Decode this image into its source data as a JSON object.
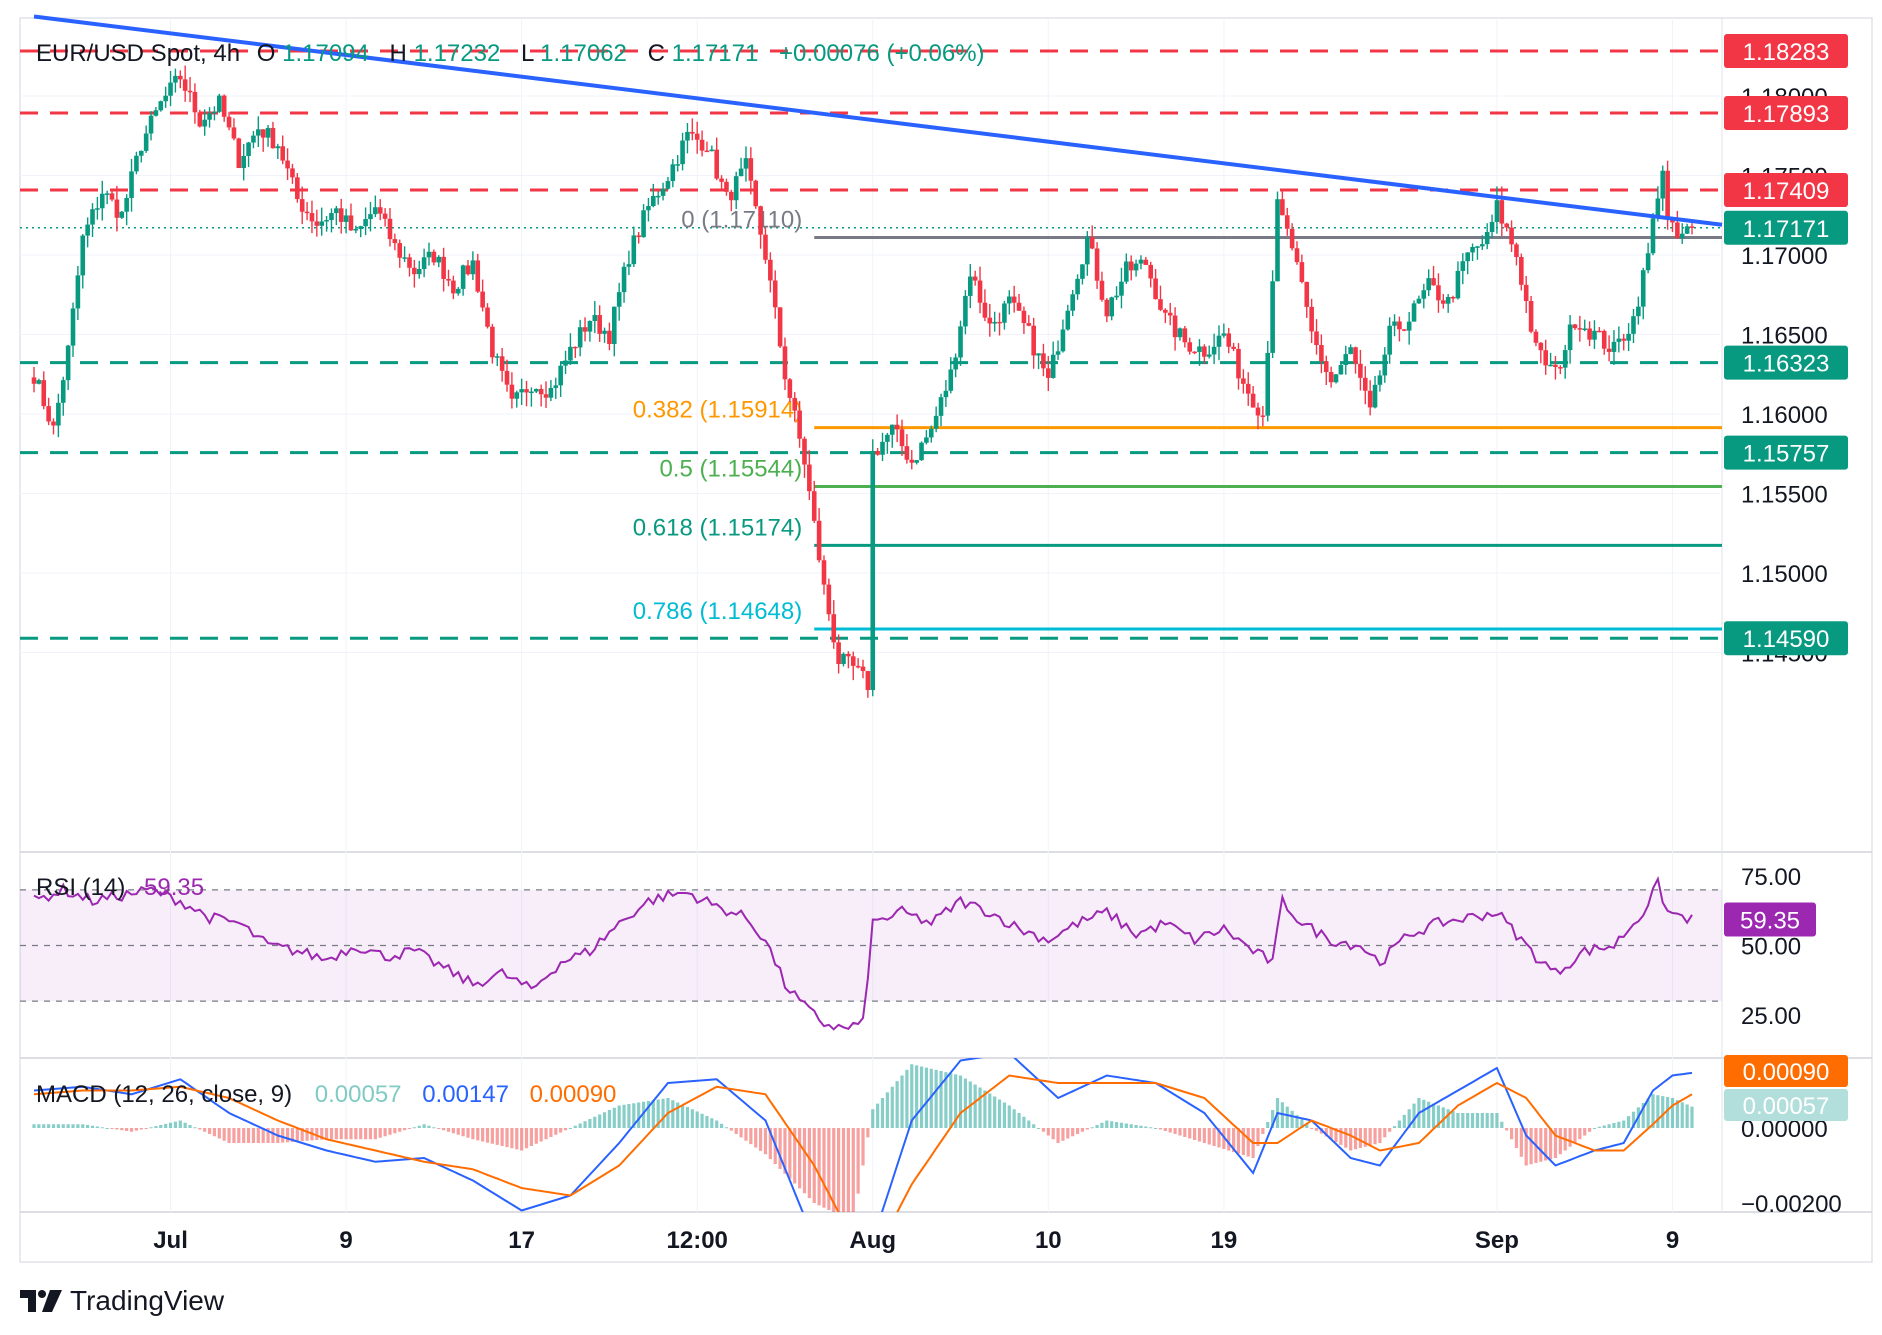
{
  "header": {
    "symbol": "EUR/USD Spot, 4h",
    "open_label": "O",
    "open": "1.17094",
    "high_label": "H",
    "high": "1.17232",
    "low_label": "L",
    "low": "1.17062",
    "close_label": "C",
    "close": "1.17171",
    "change": "+0.00076 (+0.06%)"
  },
  "price_axis_ticks": [
    "1.18000",
    "1.17500",
    "1.17000",
    "1.16500",
    "1.16000",
    "1.15500",
    "1.15000",
    "1.14500"
  ],
  "horizontal_levels": [
    {
      "label": "1.18283",
      "value": 1.18283,
      "color": "#f23645",
      "style": "dashed"
    },
    {
      "label": "1.17893",
      "value": 1.17893,
      "color": "#f23645",
      "style": "dashed"
    },
    {
      "label": "1.17409",
      "value": 1.17409,
      "color": "#f23645",
      "style": "dashed"
    },
    {
      "label": "1.16323",
      "value": 1.16323,
      "color": "#089981",
      "style": "dashed"
    },
    {
      "label": "1.15757",
      "value": 1.15757,
      "color": "#089981",
      "style": "dashed"
    },
    {
      "label": "1.14590",
      "value": 1.1459,
      "color": "#089981",
      "style": "dashed"
    }
  ],
  "current_price": {
    "label": "1.17171",
    "value": 1.17171,
    "color": "#089981"
  },
  "fib_levels": [
    {
      "label": "0 (1.17110)",
      "value": 1.1711,
      "color": "#787b86"
    },
    {
      "label": "0.382 (1.15914)",
      "value": 1.15914,
      "color": "#ff9800"
    },
    {
      "label": "0.5 (1.15544)",
      "value": 1.15544,
      "color": "#4caf50"
    },
    {
      "label": "0.618 (1.15174)",
      "value": 1.15174,
      "color": "#089981"
    },
    {
      "label": "0.786 (1.14648)",
      "value": 1.14648,
      "color": "#00bcd4"
    }
  ],
  "x_axis_labels": [
    {
      "text": "Jul",
      "bar": 28,
      "bold": true
    },
    {
      "text": "9",
      "bar": 64,
      "bold": false
    },
    {
      "text": "17",
      "bar": 100,
      "bold": false
    },
    {
      "text": "12:00",
      "bar": 136,
      "bold": false
    },
    {
      "text": "Aug",
      "bar": 172,
      "bold": true
    },
    {
      "text": "10",
      "bar": 208,
      "bold": false
    },
    {
      "text": "19",
      "bar": 244,
      "bold": false
    },
    {
      "text": "Sep",
      "bar": 300,
      "bold": true
    },
    {
      "text": "9",
      "bar": 336,
      "bold": false
    }
  ],
  "rsi": {
    "title": "RSI (14)",
    "value": "59.35",
    "ticks": [
      "75.00",
      "50.00",
      "25.00"
    ],
    "color": "#9c27b0"
  },
  "macd": {
    "title": "MACD (12, 26, close, 9)",
    "hist_value": "0.00057",
    "macd_value": "0.00147",
    "signal_value": "0.00090",
    "ticks": [
      "0.00000",
      "−0.00200"
    ],
    "macd_color": "#2962ff",
    "signal_color": "#ff6d00"
  },
  "brand": "TradingView",
  "chart_data": {
    "type": "candlestick",
    "title": "EUR/USD Spot, 4h",
    "ylim": [
      1.1425,
      1.1835
    ],
    "grid": true,
    "trendline": {
      "color": "#2962ff",
      "from": {
        "bar": 0,
        "price": 1.185
      },
      "to": {
        "bar": 340,
        "price": 1.1719
      }
    },
    "anchor_points": [
      [
        0,
        1.1625
      ],
      [
        4,
        1.159
      ],
      [
        7,
        1.164
      ],
      [
        10,
        1.171
      ],
      [
        14,
        1.174
      ],
      [
        18,
        1.1725
      ],
      [
        22,
        1.177
      ],
      [
        26,
        1.1795
      ],
      [
        30,
        1.1812
      ],
      [
        34,
        1.1785
      ],
      [
        38,
        1.1795
      ],
      [
        42,
        1.176
      ],
      [
        46,
        1.178
      ],
      [
        50,
        1.177
      ],
      [
        54,
        1.1735
      ],
      [
        58,
        1.172
      ],
      [
        62,
        1.1728
      ],
      [
        66,
        1.1712
      ],
      [
        70,
        1.173
      ],
      [
        74,
        1.1705
      ],
      [
        78,
        1.169
      ],
      [
        82,
        1.17
      ],
      [
        86,
        1.168
      ],
      [
        90,
        1.1695
      ],
      [
        94,
        1.164
      ],
      [
        98,
        1.1605
      ],
      [
        102,
        1.162
      ],
      [
        106,
        1.1615
      ],
      [
        110,
        1.164
      ],
      [
        114,
        1.166
      ],
      [
        118,
        1.165
      ],
      [
        122,
        1.17
      ],
      [
        126,
        1.173
      ],
      [
        130,
        1.175
      ],
      [
        134,
        1.1775
      ],
      [
        138,
        1.177
      ],
      [
        142,
        1.1735
      ],
      [
        146,
        1.1755
      ],
      [
        150,
        1.17
      ],
      [
        154,
        1.1625
      ],
      [
        158,
        1.157
      ],
      [
        162,
        1.149
      ],
      [
        165,
        1.1445
      ],
      [
        168,
        1.144
      ],
      [
        171,
        1.143
      ],
      [
        172,
        1.1575
      ],
      [
        176,
        1.159
      ],
      [
        180,
        1.157
      ],
      [
        184,
        1.159
      ],
      [
        188,
        1.1625
      ],
      [
        192,
        1.169
      ],
      [
        196,
        1.1655
      ],
      [
        200,
        1.167
      ],
      [
        204,
        1.165
      ],
      [
        208,
        1.162
      ],
      [
        212,
        1.167
      ],
      [
        216,
        1.171
      ],
      [
        220,
        1.1665
      ],
      [
        224,
        1.169
      ],
      [
        228,
        1.1695
      ],
      [
        232,
        1.166
      ],
      [
        236,
        1.1645
      ],
      [
        240,
        1.164
      ],
      [
        244,
        1.165
      ],
      [
        248,
        1.162
      ],
      [
        252,
        1.16
      ],
      [
        255,
        1.173
      ],
      [
        258,
        1.1705
      ],
      [
        262,
        1.165
      ],
      [
        266,
        1.162
      ],
      [
        270,
        1.164
      ],
      [
        274,
        1.16
      ],
      [
        278,
        1.165
      ],
      [
        282,
        1.166
      ],
      [
        286,
        1.168
      ],
      [
        290,
        1.167
      ],
      [
        294,
        1.17
      ],
      [
        298,
        1.171
      ],
      [
        300,
        1.173
      ],
      [
        304,
        1.17
      ],
      [
        308,
        1.164
      ],
      [
        312,
        1.1625
      ],
      [
        316,
        1.166
      ],
      [
        320,
        1.165
      ],
      [
        324,
        1.164
      ],
      [
        328,
        1.166
      ],
      [
        331,
        1.17
      ],
      [
        333,
        1.174
      ],
      [
        334,
        1.1755
      ],
      [
        335,
        1.172
      ],
      [
        337,
        1.171
      ],
      [
        340,
        1.1717
      ]
    ],
    "rsi_anchors": [
      [
        0,
        66
      ],
      [
        6,
        70
      ],
      [
        12,
        66
      ],
      [
        18,
        68
      ],
      [
        24,
        70
      ],
      [
        30,
        66
      ],
      [
        36,
        60
      ],
      [
        42,
        58
      ],
      [
        48,
        50
      ],
      [
        54,
        48
      ],
      [
        60,
        45
      ],
      [
        66,
        50
      ],
      [
        72,
        46
      ],
      [
        78,
        48
      ],
      [
        84,
        42
      ],
      [
        90,
        36
      ],
      [
        96,
        40
      ],
      [
        102,
        34
      ],
      [
        108,
        44
      ],
      [
        114,
        48
      ],
      [
        120,
        58
      ],
      [
        126,
        66
      ],
      [
        130,
        68
      ],
      [
        134,
        69
      ],
      [
        140,
        64
      ],
      [
        146,
        60
      ],
      [
        150,
        52
      ],
      [
        154,
        36
      ],
      [
        158,
        28
      ],
      [
        162,
        22
      ],
      [
        166,
        20
      ],
      [
        170,
        22
      ],
      [
        172,
        58
      ],
      [
        178,
        62
      ],
      [
        184,
        58
      ],
      [
        190,
        66
      ],
      [
        196,
        62
      ],
      [
        202,
        56
      ],
      [
        208,
        52
      ],
      [
        214,
        58
      ],
      [
        220,
        62
      ],
      [
        226,
        54
      ],
      [
        232,
        58
      ],
      [
        238,
        52
      ],
      [
        244,
        56
      ],
      [
        250,
        48
      ],
      [
        254,
        44
      ],
      [
        256,
        66
      ],
      [
        260,
        58
      ],
      [
        266,
        52
      ],
      [
        272,
        50
      ],
      [
        276,
        44
      ],
      [
        282,
        54
      ],
      [
        288,
        58
      ],
      [
        294,
        60
      ],
      [
        300,
        62
      ],
      [
        304,
        54
      ],
      [
        308,
        46
      ],
      [
        312,
        40
      ],
      [
        318,
        48
      ],
      [
        324,
        50
      ],
      [
        330,
        62
      ],
      [
        333,
        72
      ],
      [
        335,
        62
      ],
      [
        340,
        59.35
      ]
    ],
    "macd_anchors": [
      [
        0,
        0.001,
        0.0009
      ],
      [
        10,
        0.0011,
        0.001
      ],
      [
        20,
        0.0009,
        0.001
      ],
      [
        30,
        0.0013,
        0.0011
      ],
      [
        40,
        0.0004,
        0.0008
      ],
      [
        50,
        -0.0002,
        0.0002
      ],
      [
        60,
        -0.0006,
        -0.0003
      ],
      [
        70,
        -0.0009,
        -0.0006
      ],
      [
        80,
        -0.0008,
        -0.0009
      ],
      [
        90,
        -0.0014,
        -0.0011
      ],
      [
        100,
        -0.0022,
        -0.0016
      ],
      [
        110,
        -0.0018,
        -0.0018
      ],
      [
        120,
        -0.0004,
        -0.001
      ],
      [
        130,
        0.0012,
        0.0004
      ],
      [
        140,
        0.0013,
        0.0011
      ],
      [
        150,
        0.0002,
        0.0009
      ],
      [
        160,
        -0.003,
        -0.001
      ],
      [
        168,
        -0.0055,
        -0.003
      ],
      [
        172,
        -0.003,
        -0.0035
      ],
      [
        180,
        0.0002,
        -0.0015
      ],
      [
        190,
        0.0018,
        0.0004
      ],
      [
        200,
        0.002,
        0.0014
      ],
      [
        210,
        0.0008,
        0.0012
      ],
      [
        220,
        0.0014,
        0.0012
      ],
      [
        230,
        0.0012,
        0.0012
      ],
      [
        240,
        0.0004,
        0.0008
      ],
      [
        250,
        -0.0012,
        -0.0004
      ],
      [
        255,
        0.0004,
        -0.0004
      ],
      [
        262,
        0.0002,
        0.0002
      ],
      [
        270,
        -0.0008,
        -0.0002
      ],
      [
        276,
        -0.001,
        -0.0006
      ],
      [
        284,
        0.0004,
        -0.0004
      ],
      [
        292,
        0.001,
        0.0006
      ],
      [
        300,
        0.0016,
        0.0012
      ],
      [
        306,
        -0.0002,
        0.0008
      ],
      [
        312,
        -0.001,
        -0.0002
      ],
      [
        320,
        -0.0006,
        -0.0006
      ],
      [
        326,
        -0.0004,
        -0.0006
      ],
      [
        332,
        0.001,
        0.0001
      ],
      [
        336,
        0.0014,
        0.0006
      ],
      [
        340,
        0.00147,
        0.0009
      ]
    ]
  }
}
